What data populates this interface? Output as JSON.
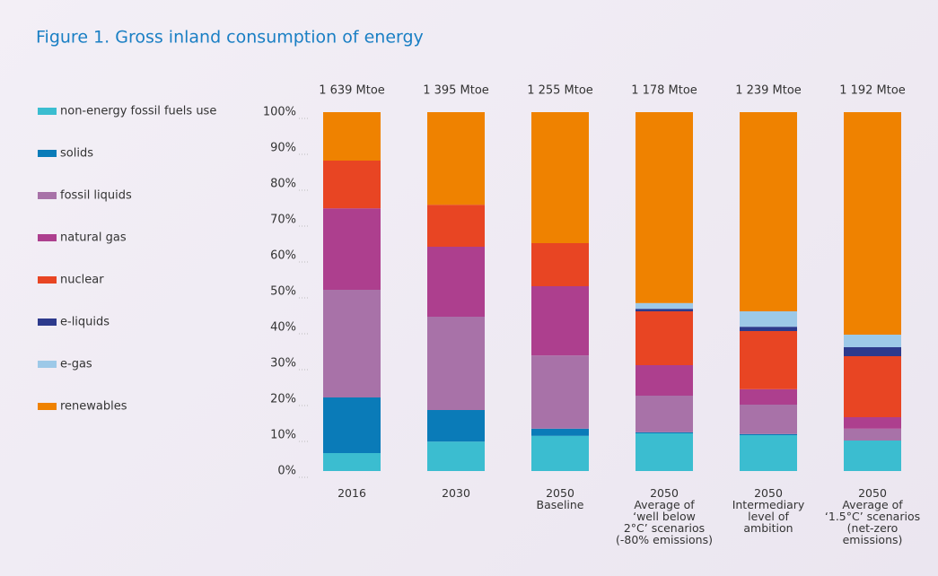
{
  "chart_data": {
    "type": "stacked_bar",
    "title": "Figure 1. Gross inland consumption of energy",
    "categories": [
      "2016",
      "2030",
      "2050\nBaseline",
      "2050\nAverage of\n‘well below\n2°C’ scenarios\n(-80% emissions)",
      "2050\nIntermediary\nlevel of\nambition",
      "2050\nAverage of\n‘1.5°C’ scenarios\n(net-zero\nemissions)"
    ],
    "totals": [
      "1 639 Mtoe",
      "1 395 Mtoe",
      "1 255 Mtoe",
      "1 178 Mtoe",
      "1 239 Mtoe",
      "1 192 Mtoe"
    ],
    "series": [
      {
        "name": "non-energy fossil fuels use",
        "color": "#3bbdd0",
        "values": [
          5,
          8.2,
          9.8,
          10.5,
          10,
          8.5
        ]
      },
      {
        "name": "solids",
        "color": "#0a7bb8",
        "values": [
          15.5,
          8.8,
          2,
          0.3,
          0.3,
          0
        ]
      },
      {
        "name": "fossil liquids",
        "color": "#a872a8",
        "values": [
          30,
          26,
          20.4,
          10.2,
          8.2,
          3.3
        ]
      },
      {
        "name": "natural gas",
        "color": "#ad3f8e",
        "values": [
          22.7,
          19.5,
          19.3,
          8.5,
          4.3,
          3.2
        ]
      },
      {
        "name": "nuclear",
        "color": "#e84523",
        "values": [
          13.3,
          11.7,
          12,
          15,
          16.2,
          17
        ]
      },
      {
        "name": "e-liquids",
        "color": "#2d3a8c",
        "values": [
          0,
          0,
          0,
          0.7,
          1.2,
          2.5
        ]
      },
      {
        "name": "e-gas",
        "color": "#9dc9e8",
        "values": [
          0,
          0,
          0,
          1.6,
          4.3,
          3.5
        ]
      },
      {
        "name": "renewables",
        "color": "#ef8200",
        "values": [
          13.5,
          25.8,
          36.5,
          53.2,
          55.5,
          62
        ]
      }
    ],
    "ylim": [
      0,
      100
    ],
    "yticks": [
      {
        "value": 0,
        "label": "0%"
      },
      {
        "value": 10,
        "label": "10%"
      },
      {
        "value": 20,
        "label": "20%"
      },
      {
        "value": 30,
        "label": "30%"
      },
      {
        "value": 40,
        "label": "40%"
      },
      {
        "value": 50,
        "label": "50%"
      },
      {
        "value": 60,
        "label": "60%"
      },
      {
        "value": 70,
        "label": "70%"
      },
      {
        "value": 80,
        "label": "80%"
      },
      {
        "value": 90,
        "label": "90%"
      },
      {
        "value": 100,
        "label": "100%"
      }
    ],
    "grid": false,
    "legend": "left"
  }
}
